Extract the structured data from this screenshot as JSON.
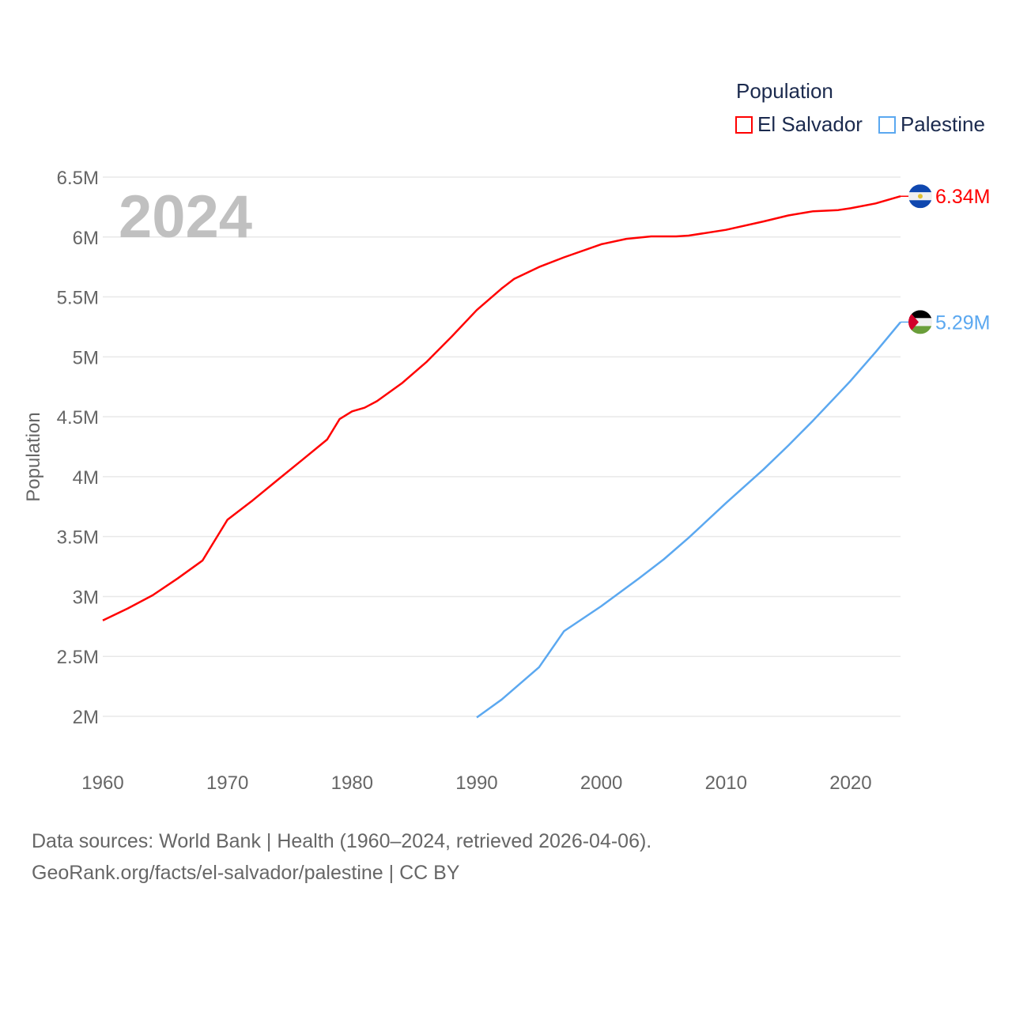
{
  "chart_data": {
    "type": "line",
    "title": "Population",
    "ylabel": "Population",
    "xlabel": "",
    "overlay_year": "2024",
    "xlim": [
      1960,
      2024
    ],
    "ylim": [
      2000000,
      6500000
    ],
    "x_ticks": [
      1960,
      1970,
      1980,
      1990,
      2000,
      2010,
      2020
    ],
    "y_ticks": [
      {
        "value": 2000000,
        "label": "2M"
      },
      {
        "value": 2500000,
        "label": "2.5M"
      },
      {
        "value": 3000000,
        "label": "3M"
      },
      {
        "value": 3500000,
        "label": "3.5M"
      },
      {
        "value": 4000000,
        "label": "4M"
      },
      {
        "value": 4500000,
        "label": "4.5M"
      },
      {
        "value": 5000000,
        "label": "5M"
      },
      {
        "value": 5500000,
        "label": "5.5M"
      },
      {
        "value": 6000000,
        "label": "6M"
      },
      {
        "value": 6500000,
        "label": "6.5M"
      }
    ],
    "grid": true,
    "legend_position": "top-right",
    "series": [
      {
        "name": "El Salvador",
        "color": "#ff0000",
        "end_label": "6.34M",
        "flag": "el-salvador-flag",
        "points": [
          [
            1960,
            2800000
          ],
          [
            1962,
            2900000
          ],
          [
            1964,
            3010000
          ],
          [
            1966,
            3150000
          ],
          [
            1968,
            3300000
          ],
          [
            1970,
            3640000
          ],
          [
            1972,
            3800000
          ],
          [
            1974,
            3970000
          ],
          [
            1976,
            4140000
          ],
          [
            1978,
            4310000
          ],
          [
            1979,
            4480000
          ],
          [
            1980,
            4545000
          ],
          [
            1981,
            4575000
          ],
          [
            1982,
            4630000
          ],
          [
            1984,
            4780000
          ],
          [
            1986,
            4960000
          ],
          [
            1988,
            5170000
          ],
          [
            1990,
            5390000
          ],
          [
            1992,
            5570000
          ],
          [
            1993,
            5650000
          ],
          [
            1995,
            5750000
          ],
          [
            1997,
            5830000
          ],
          [
            2000,
            5940000
          ],
          [
            2002,
            5985000
          ],
          [
            2004,
            6005000
          ],
          [
            2006,
            6005000
          ],
          [
            2007,
            6012000
          ],
          [
            2010,
            6060000
          ],
          [
            2013,
            6130000
          ],
          [
            2015,
            6180000
          ],
          [
            2017,
            6215000
          ],
          [
            2019,
            6225000
          ],
          [
            2020,
            6240000
          ],
          [
            2022,
            6280000
          ],
          [
            2024,
            6340000
          ]
        ]
      },
      {
        "name": "Palestine",
        "color": "#5ba8f0",
        "end_label": "5.29M",
        "flag": "palestine-flag",
        "points": [
          [
            1990,
            1990000
          ],
          [
            1992,
            2140000
          ],
          [
            1995,
            2410000
          ],
          [
            1997,
            2710000
          ],
          [
            2000,
            2920000
          ],
          [
            2003,
            3150000
          ],
          [
            2005,
            3310000
          ],
          [
            2007,
            3490000
          ],
          [
            2010,
            3780000
          ],
          [
            2013,
            4060000
          ],
          [
            2015,
            4260000
          ],
          [
            2017,
            4470000
          ],
          [
            2019,
            4690000
          ],
          [
            2020,
            4800000
          ],
          [
            2022,
            5040000
          ],
          [
            2024,
            5290000
          ]
        ]
      }
    ]
  },
  "legend": {
    "title": "Population",
    "items": [
      "El Salvador",
      "Palestine"
    ]
  },
  "footer": {
    "line1": "Data sources: World Bank | Health (1960–2024, retrieved 2026-04-06).",
    "line2": "GeoRank.org/facts/el-salvador/palestine | CC BY"
  }
}
